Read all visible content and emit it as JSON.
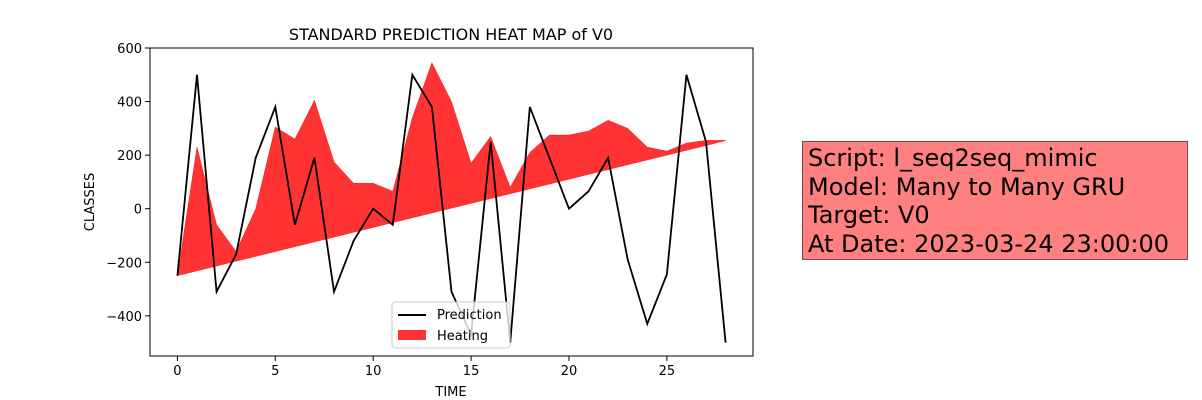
{
  "chart_data": {
    "type": "line",
    "title": "STANDARD PREDICTION HEAT MAP of V0",
    "xlabel": "TIME",
    "ylabel": "CLASSES",
    "xlim": [
      -1.4,
      29.4
    ],
    "ylim": [
      -550,
      600
    ],
    "xticks": [
      0,
      5,
      10,
      15,
      20,
      25
    ],
    "yticks": [
      -400,
      -200,
      0,
      200,
      400,
      600
    ],
    "grid": false,
    "legend_position": "bottom-center",
    "x": [
      0,
      1,
      2,
      3,
      4,
      5,
      6,
      7,
      8,
      9,
      10,
      11,
      12,
      13,
      14,
      15,
      16,
      17,
      18,
      19,
      20,
      21,
      22,
      23,
      24,
      25,
      26,
      27,
      28
    ],
    "series": [
      {
        "name": "Prediction",
        "kind": "line",
        "color": "#000000",
        "values": [
          -250,
          500,
          -310,
          -170,
          190,
          380,
          -60,
          190,
          -310,
          -120,
          0,
          -60,
          500,
          380,
          -310,
          -470,
          250,
          -500,
          380,
          190,
          0,
          65,
          190,
          -190,
          -430,
          -245,
          500,
          250,
          -500
        ]
      },
      {
        "name": "Heating",
        "kind": "area",
        "color": "#ff0000",
        "upper": [
          -250,
          230,
          -60,
          -160,
          0,
          305,
          260,
          405,
          175,
          95,
          95,
          65,
          340,
          545,
          400,
          170,
          270,
          80,
          210,
          275,
          275,
          290,
          330,
          300,
          230,
          215,
          245,
          255,
          255
        ],
        "lower": [
          -250,
          -232,
          -214,
          -196,
          -178,
          -160,
          -142,
          -124,
          -106,
          -88,
          -70,
          -52,
          -34,
          -16,
          2,
          20,
          38,
          56,
          74,
          92,
          110,
          128,
          146,
          164,
          182,
          200,
          218,
          236,
          254
        ]
      }
    ]
  },
  "info_box": {
    "script": "Script: l_seq2seq_mimic",
    "model": "Model: Many to Many GRU",
    "target": "Target: V0",
    "date": "At Date: 2023-03-24 23:00:00",
    "background": "#ff8080"
  }
}
